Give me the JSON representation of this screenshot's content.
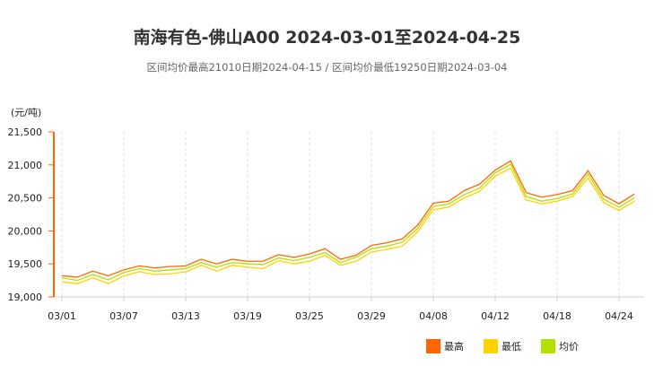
{
  "chart_data": {
    "type": "line",
    "title": "南海有色-佛山A00 2024-03-01至2024-04-25",
    "subtitle": "区间均价最高21010日期2024-04-15 / 区间均价最低19250日期2024-03-04",
    "ylabel": "(元/吨)",
    "ylim": [
      19000,
      21500
    ],
    "yticks": [
      "19,000",
      "19,500",
      "20,000",
      "20,500",
      "21,000",
      "21,500"
    ],
    "grid": "vertical dashed at labeled dates",
    "legend_position": "bottom-right",
    "x": [
      "03/01",
      "03/04",
      "03/05",
      "03/06",
      "03/07",
      "03/08",
      "03/11",
      "03/12",
      "03/13",
      "03/14",
      "03/15",
      "03/18",
      "03/19",
      "03/20",
      "03/21",
      "03/22",
      "03/25",
      "03/26",
      "03/27",
      "03/28",
      "03/29",
      "04/01",
      "04/02",
      "04/03",
      "04/08",
      "04/09",
      "04/10",
      "04/11",
      "04/12",
      "04/15",
      "04/16",
      "04/17",
      "04/18",
      "04/19",
      "04/22",
      "04/23",
      "04/24",
      "04/25"
    ],
    "xtick_labels": [
      "03/01",
      "03/07",
      "03/13",
      "03/19",
      "03/25",
      "03/29",
      "04/08",
      "04/12",
      "04/18",
      "04/24"
    ],
    "series": [
      {
        "name": "最高",
        "color": "#ff6600",
        "values": [
          19320,
          19300,
          19390,
          19320,
          19410,
          19470,
          19440,
          19460,
          19470,
          19570,
          19500,
          19570,
          19540,
          19540,
          19640,
          19600,
          19650,
          19730,
          19570,
          19630,
          19780,
          19820,
          19880,
          20090,
          20420,
          20450,
          20610,
          20710,
          20920,
          21060,
          20580,
          20510,
          20550,
          20610,
          20910,
          20540,
          20410,
          20560
        ]
      },
      {
        "name": "最低",
        "color": "#ffd200",
        "values": [
          19230,
          19200,
          19290,
          19200,
          19320,
          19380,
          19340,
          19350,
          19380,
          19480,
          19390,
          19480,
          19450,
          19430,
          19550,
          19500,
          19540,
          19630,
          19480,
          19540,
          19680,
          19720,
          19770,
          19990,
          20320,
          20360,
          20500,
          20600,
          20830,
          20950,
          20470,
          20410,
          20450,
          20520,
          20800,
          20430,
          20310,
          20450
        ]
      },
      {
        "name": "均价",
        "color": "#b3e000",
        "values": [
          19290,
          19250,
          19340,
          19260,
          19370,
          19430,
          19390,
          19410,
          19430,
          19520,
          19450,
          19520,
          19500,
          19490,
          19590,
          19550,
          19600,
          19670,
          19520,
          19600,
          19730,
          19770,
          19830,
          20040,
          20370,
          20410,
          20550,
          20650,
          20880,
          21010,
          20520,
          20450,
          20490,
          20560,
          20860,
          20480,
          20360,
          20500
        ]
      }
    ]
  }
}
